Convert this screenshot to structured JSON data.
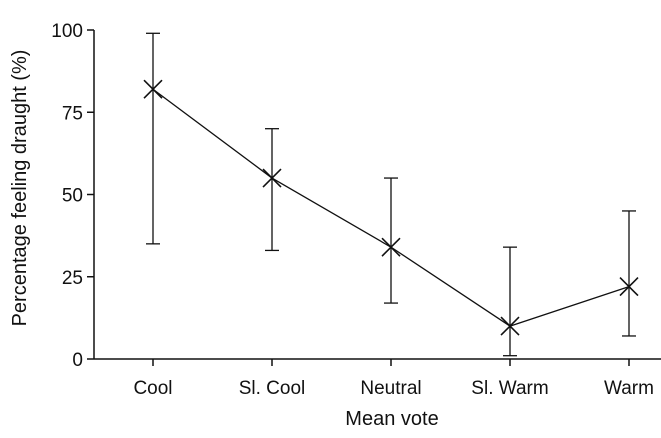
{
  "chart_data": {
    "type": "line",
    "title": "",
    "xlabel": "Mean vote",
    "ylabel": "Percentage feeling draught (%)",
    "ylim": [
      0,
      100
    ],
    "yticks": [
      0,
      25,
      50,
      75,
      100
    ],
    "categories": [
      "Cool",
      "Sl. Cool",
      "Neutral",
      "Sl. Warm",
      "Warm"
    ],
    "series": [
      {
        "values": [
          82,
          55,
          34,
          10,
          22
        ],
        "error_low": [
          35,
          33,
          17,
          1,
          7
        ],
        "error_high": [
          99,
          70,
          55,
          34,
          45
        ]
      }
    ],
    "marker": "x",
    "grid": false,
    "legend": false,
    "colors": {
      "line": "#111111",
      "axis": "#111111",
      "background": "#ffffff"
    }
  }
}
